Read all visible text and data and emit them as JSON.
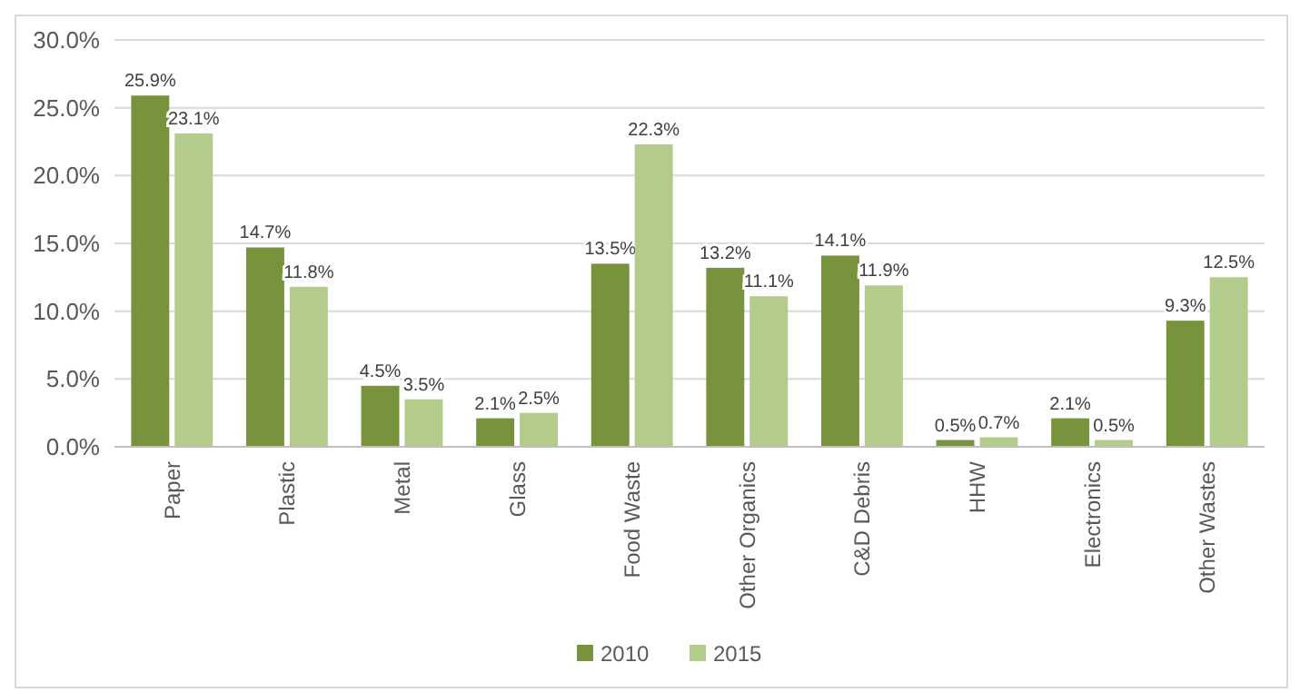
{
  "chart_data": {
    "type": "bar",
    "categories": [
      "Paper",
      "Plastic",
      "Metal",
      "Glass",
      "Food Waste",
      "Other Organics",
      "C&D Debris",
      "HHW",
      "Electronics",
      "Other Wastes"
    ],
    "series": [
      {
        "name": "2010",
        "color": "#77933c",
        "values": [
          25.9,
          14.7,
          4.5,
          2.1,
          13.5,
          13.2,
          14.1,
          0.5,
          2.1,
          9.3
        ],
        "value_labels": [
          "25.9%",
          "14.7%",
          "4.5%",
          "2.1%",
          "13.5%",
          "13.2%",
          "14.1%",
          "0.5%",
          "2.1%",
          "9.3%"
        ]
      },
      {
        "name": "2015",
        "color": "#b3cb8b",
        "values": [
          23.1,
          11.8,
          3.5,
          2.5,
          22.3,
          11.1,
          11.9,
          0.7,
          0.5,
          12.5
        ],
        "value_labels": [
          "23.1%",
          "11.8%",
          "3.5%",
          "2.5%",
          "22.3%",
          "11.1%",
          "11.9%",
          "0.7%",
          "0.5%",
          "12.5%"
        ]
      }
    ],
    "ylim": [
      0,
      30
    ],
    "yticks": [
      {
        "value": 0,
        "label": "0.0%"
      },
      {
        "value": 5,
        "label": "5.0%"
      },
      {
        "value": 10,
        "label": "10.0%"
      },
      {
        "value": 15,
        "label": "15.0%"
      },
      {
        "value": 20,
        "label": "20.0%"
      },
      {
        "value": 25,
        "label": "25.0%"
      },
      {
        "value": 30,
        "label": "30.0%"
      }
    ],
    "grid": "y",
    "legend": "bottom"
  }
}
